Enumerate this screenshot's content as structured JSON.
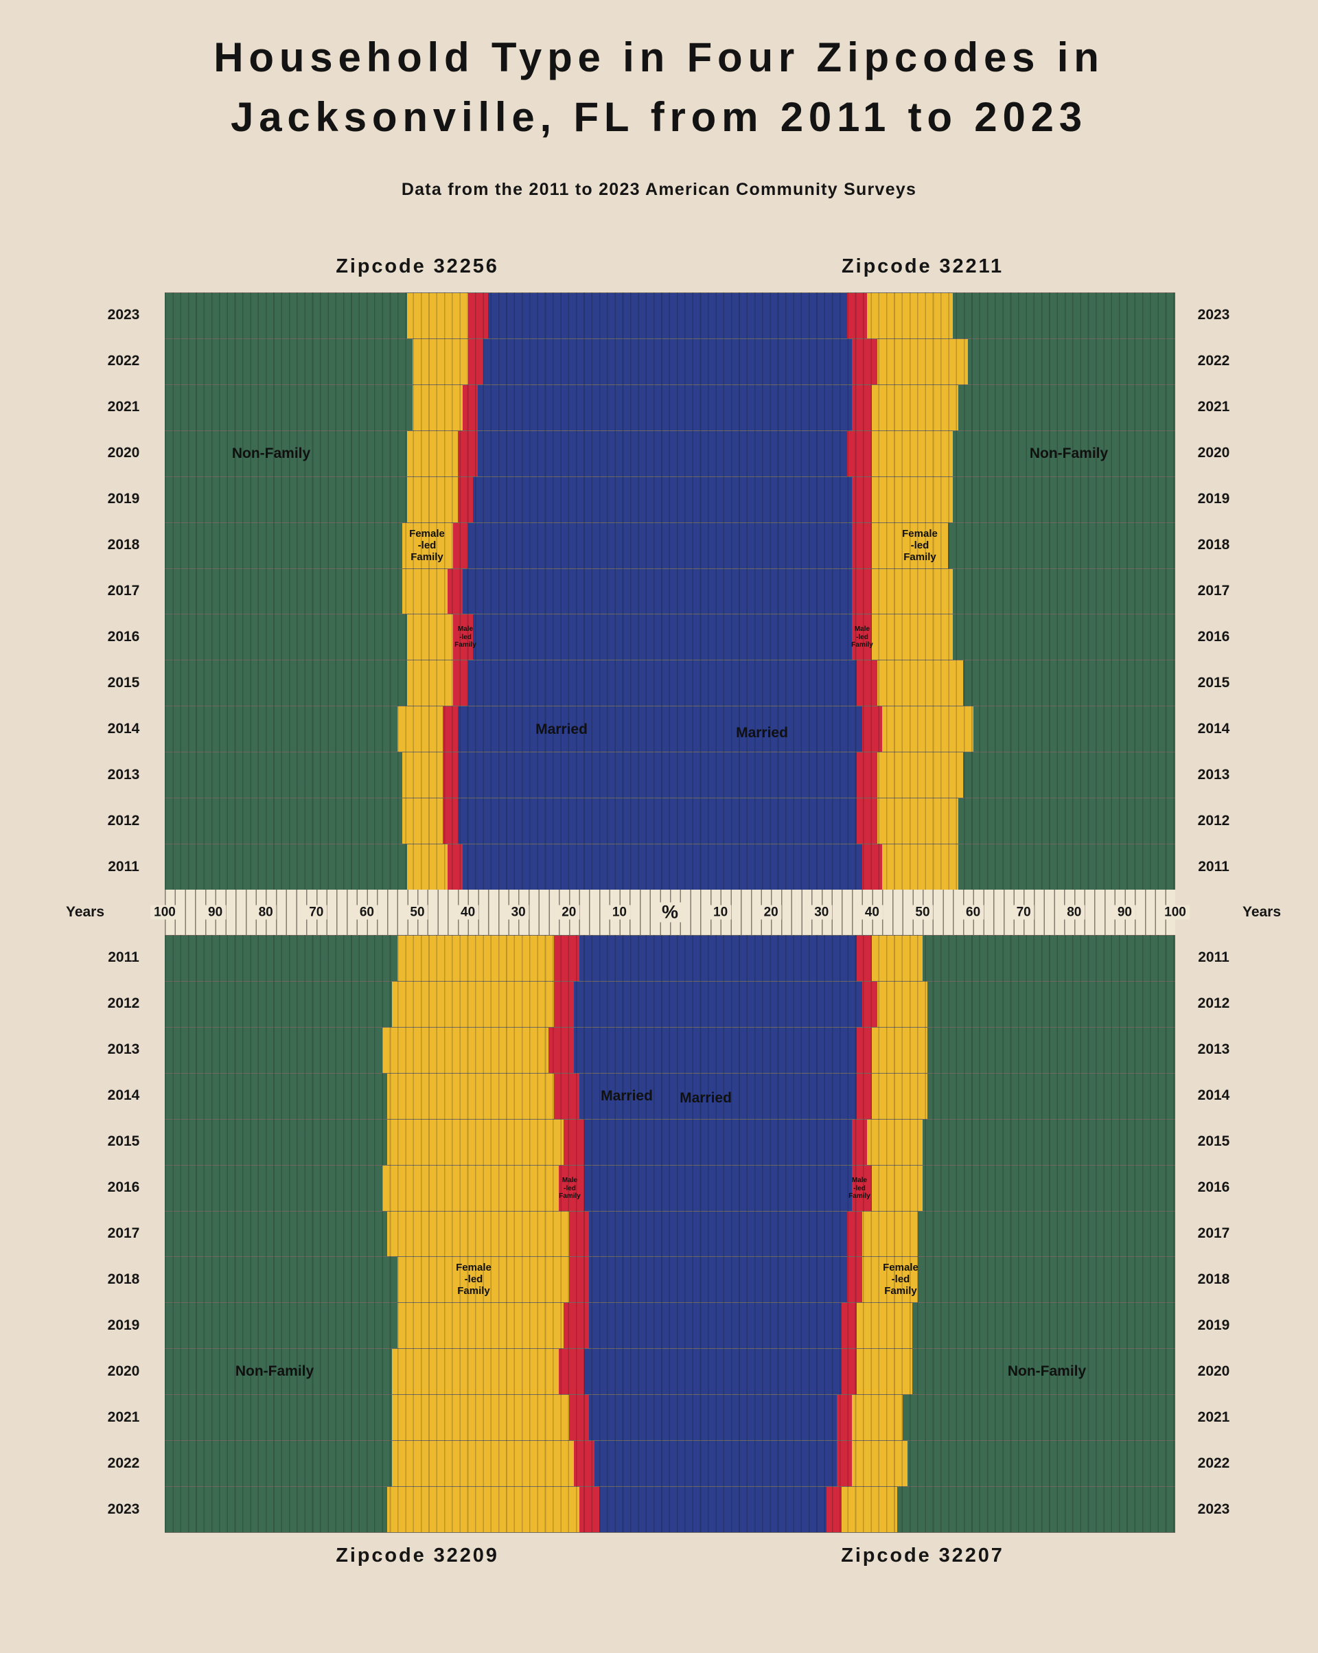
{
  "title": {
    "line1": "Household Type in Four Zipcodes in",
    "line2": "Jacksonville, FL from 2011 to 2023"
  },
  "subtitle": "Data from the 2011 to 2023 American Community Surveys",
  "axis": {
    "years_label": "Years",
    "percent_label": "%",
    "tick_values": [
      10,
      20,
      30,
      40,
      50,
      60,
      70,
      80,
      90,
      100
    ]
  },
  "colors": {
    "background": "#e9decd",
    "axis_band": "#efe6d4",
    "text": "#151515",
    "series": [
      "#2c3e8c",
      "#d2283e",
      "#edb92f",
      "#3c6b52"
    ]
  },
  "legend_annotations": {
    "married": "Married",
    "male_led": [
      "Male",
      "-led",
      "Family"
    ],
    "female_led": [
      "Female",
      "-led",
      "Family"
    ],
    "non_family": "Non-Family"
  },
  "chart_data": {
    "type": "bar",
    "variant": "diverging-stacked-percentage",
    "title": "Household Type in Four Zipcodes in Jacksonville, FL from 2011 to 2023",
    "xlabel": "%",
    "ylabel": "Years",
    "xlim": [
      0,
      100
    ],
    "x_tick_interval": 10,
    "years": [
      2011,
      2012,
      2013,
      2014,
      2015,
      2016,
      2017,
      2018,
      2019,
      2020,
      2021,
      2022,
      2023
    ],
    "categories": [
      "Married",
      "Male-led Family",
      "Female-led Family",
      "Non-Family"
    ],
    "quadrants": [
      {
        "label": "Zipcode 32256",
        "position": "top-left",
        "series": [
          {
            "name": "Married",
            "values": [
              41,
              42,
              42,
              42,
              40,
              39,
              41,
              40,
              39,
              38,
              38,
              37,
              36
            ]
          },
          {
            "name": "Male-led Family",
            "values": [
              3,
              3,
              3,
              3,
              3,
              4,
              3,
              3,
              3,
              4,
              3,
              3,
              4
            ]
          },
          {
            "name": "Female-led Family",
            "values": [
              8,
              8,
              8,
              9,
              9,
              9,
              9,
              10,
              10,
              10,
              10,
              11,
              12
            ]
          },
          {
            "name": "Non-Family",
            "values": [
              48,
              47,
              47,
              46,
              48,
              48,
              47,
              47,
              48,
              48,
              49,
              49,
              48
            ]
          }
        ]
      },
      {
        "label": "Zipcode 32211",
        "position": "top-right",
        "series": [
          {
            "name": "Married",
            "values": [
              38,
              37,
              37,
              38,
              37,
              36,
              36,
              36,
              36,
              35,
              36,
              36,
              35
            ]
          },
          {
            "name": "Male-led Family",
            "values": [
              4,
              4,
              4,
              4,
              4,
              4,
              4,
              4,
              4,
              5,
              4,
              5,
              4
            ]
          },
          {
            "name": "Female-led Family",
            "values": [
              15,
              16,
              17,
              18,
              17,
              16,
              16,
              15,
              16,
              16,
              17,
              18,
              17
            ]
          },
          {
            "name": "Non-Family",
            "values": [
              43,
              43,
              42,
              40,
              42,
              44,
              44,
              45,
              44,
              44,
              43,
              41,
              44
            ]
          }
        ]
      },
      {
        "label": "Zipcode 32209",
        "position": "bottom-left",
        "series": [
          {
            "name": "Married",
            "values": [
              18,
              19,
              19,
              18,
              17,
              17,
              16,
              16,
              16,
              17,
              16,
              15,
              14
            ]
          },
          {
            "name": "Male-led Family",
            "values": [
              5,
              4,
              5,
              5,
              4,
              5,
              4,
              4,
              5,
              5,
              4,
              4,
              4
            ]
          },
          {
            "name": "Female-led Family",
            "values": [
              31,
              32,
              33,
              33,
              35,
              35,
              36,
              34,
              33,
              33,
              35,
              36,
              38
            ]
          },
          {
            "name": "Non-Family",
            "values": [
              46,
              45,
              43,
              44,
              44,
              43,
              44,
              46,
              46,
              45,
              45,
              45,
              44
            ]
          }
        ]
      },
      {
        "label": "Zipcode 32207",
        "position": "bottom-right",
        "series": [
          {
            "name": "Married",
            "values": [
              37,
              38,
              37,
              37,
              36,
              36,
              35,
              35,
              34,
              34,
              33,
              33,
              31
            ]
          },
          {
            "name": "Male-led Family",
            "values": [
              3,
              3,
              3,
              3,
              3,
              4,
              3,
              3,
              3,
              3,
              3,
              3,
              3
            ]
          },
          {
            "name": "Female-led Family",
            "values": [
              10,
              10,
              11,
              11,
              11,
              10,
              11,
              11,
              11,
              11,
              10,
              11,
              11
            ]
          },
          {
            "name": "Non-Family",
            "values": [
              50,
              49,
              49,
              49,
              50,
              50,
              51,
              51,
              52,
              52,
              54,
              53,
              55
            ]
          }
        ]
      }
    ]
  }
}
